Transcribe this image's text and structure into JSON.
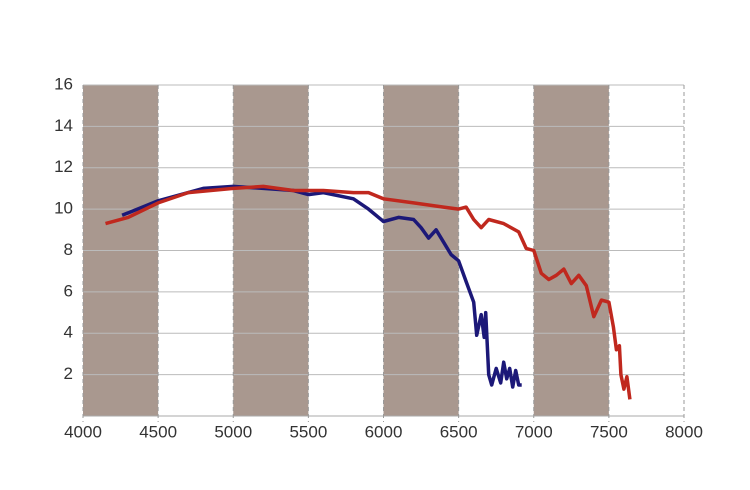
{
  "chart_data": {
    "type": "line",
    "xlim": [
      4000,
      8000
    ],
    "xticks": [
      4000,
      4500,
      5000,
      5500,
      6000,
      6500,
      7000,
      7500,
      8000
    ],
    "ylim": [
      0,
      16
    ],
    "yticks": [
      2,
      4,
      6,
      8,
      10,
      12,
      14,
      16
    ],
    "grid": true,
    "band_color": "#a9988f",
    "series": [
      {
        "color": "#1c1878",
        "x": [
          4260,
          4500,
          4800,
          5000,
          5200,
          5400,
          5500,
          5600,
          5800,
          5900,
          6000,
          6100,
          6200,
          6250,
          6300,
          6350,
          6400,
          6450,
          6500,
          6550,
          6600,
          6620,
          6650,
          6670,
          6680,
          6700,
          6720,
          6750,
          6780,
          6800,
          6820,
          6840,
          6860,
          6880,
          6900,
          6920
        ],
        "values": [
          9.7,
          10.4,
          11,
          11.1,
          11,
          10.9,
          10.7,
          10.8,
          10.5,
          10,
          9.4,
          9.6,
          9.5,
          9.1,
          8.6,
          9,
          8.4,
          7.8,
          7.5,
          6.5,
          5.5,
          3.9,
          4.9,
          3.8,
          5.0,
          2.0,
          1.5,
          2.3,
          1.6,
          2.6,
          1.8,
          2.3,
          1.4,
          2.2,
          1.5,
          1.5
        ]
      },
      {
        "color": "#c0281e",
        "x": [
          4150,
          4300,
          4500,
          4700,
          5000,
          5200,
          5400,
          5600,
          5800,
          5900,
          6000,
          6200,
          6400,
          6500,
          6550,
          6600,
          6650,
          6700,
          6800,
          6900,
          6950,
          7000,
          7050,
          7100,
          7150,
          7200,
          7250,
          7300,
          7350,
          7400,
          7450,
          7500,
          7530,
          7550,
          7570,
          7580,
          7600,
          7620,
          7640
        ],
        "values": [
          9.3,
          9.6,
          10.3,
          10.8,
          11,
          11.1,
          10.9,
          10.9,
          10.8,
          10.8,
          10.5,
          10.3,
          10.1,
          10,
          10.1,
          9.5,
          9.1,
          9.5,
          9.3,
          8.9,
          8.1,
          8,
          6.9,
          6.6,
          6.8,
          7.1,
          6.4,
          6.8,
          6.3,
          4.8,
          5.6,
          5.5,
          4.3,
          3.2,
          3.4,
          2.0,
          1.3,
          1.9,
          0.8
        ]
      }
    ]
  }
}
